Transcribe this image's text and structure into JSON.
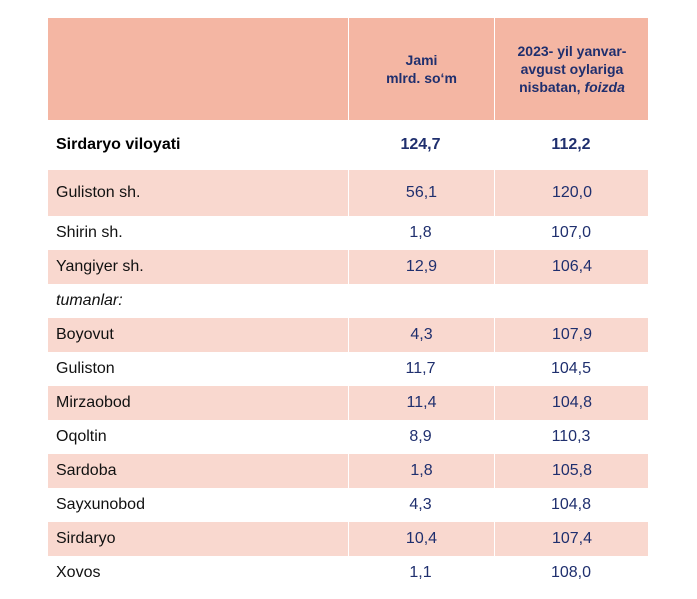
{
  "header": {
    "col2": "Jami\nmlrd. so‘m",
    "col3_main": "2023- yil yanvar-\navgust oylariga\nnisbatan, ",
    "col3_italic": "foizda"
  },
  "region": {
    "name": "Sirdaryo viloyati",
    "total": "124,7",
    "pct": "112,2"
  },
  "cities": [
    {
      "name": "Guliston  sh.",
      "total": "56,1",
      "pct": "120,0"
    },
    {
      "name": "Shirin sh.",
      "total": "1,8",
      "pct": "107,0"
    },
    {
      "name": "Yangiyer sh.",
      "total": "12,9",
      "pct": "106,4"
    }
  ],
  "districts_label": "tumanlar:",
  "districts": [
    {
      "name": "Boyovut",
      "total": "4,3",
      "pct": "107,9"
    },
    {
      "name": "Guliston",
      "total": "11,7",
      "pct": "104,5"
    },
    {
      "name": "Mirzaobod",
      "total": "11,4",
      "pct": "104,8"
    },
    {
      "name": "Oqoltin",
      "total": "8,9",
      "pct": "110,3"
    },
    {
      "name": "Sardoba",
      "total": "1,8",
      "pct": "105,8"
    },
    {
      "name": "Sayxunobod",
      "total": "4,3",
      "pct": "104,8"
    },
    {
      "name": "Sirdaryo",
      "total": "10,4",
      "pct": "107,4"
    },
    {
      "name": "Xovos",
      "total": "1,1",
      "pct": "108,0"
    }
  ]
}
